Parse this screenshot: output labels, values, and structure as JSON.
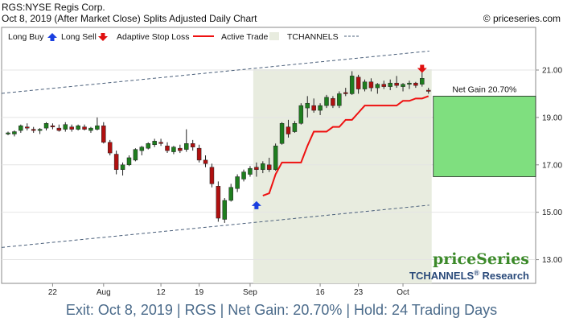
{
  "header": {
    "line1": "RGS:NYSE Regis Corp.",
    "line2": "Oct 8, 2019 (After Market Close)  Splits Adjusted Daily Chart",
    "copyright": "© priceseries.com"
  },
  "legend": {
    "long_buy": "Long Buy",
    "long_sell": "Long Sell",
    "adaptive_stop": "Adaptive Stop Loss",
    "active_trade": "Active Trade",
    "tchannels": "TCHANNELS"
  },
  "brand": {
    "logo": "priceSeries",
    "research_prefix": "TCHANNELS",
    "research_reg": "®",
    "research_suffix": " Research"
  },
  "gain_label": "Net Gain 20.70%",
  "footer": "Exit: Oct 8, 2019 | RGS | Net Gain: 20.70% | Hold: 24 Trading Days",
  "colors": {
    "up": "#1e7d1e",
    "down": "#b01010",
    "stop": "#ee1111",
    "active_bg": "#e8ecdf",
    "gain_box": "#7fdf7f",
    "channel": "#4a5f7a",
    "footer_text": "#4a6a8a",
    "research_text": "#2a4a7a",
    "logo_text": "#3c8a2a"
  },
  "chart_data": {
    "type": "candlestick",
    "title": "RGS:NYSE Regis Corp.",
    "ylim": [
      12.0,
      22.8
    ],
    "yticks": [
      13.0,
      15.0,
      17.0,
      19.0,
      21.0
    ],
    "ytick_labels": [
      "13.00",
      "15.00",
      "17.00",
      "19.00",
      "21.00"
    ],
    "xtick_labels": [
      {
        "label": "22",
        "i": 7
      },
      {
        "label": "Aug",
        "i": 15
      },
      {
        "label": "12",
        "i": 24
      },
      {
        "label": "19",
        "i": 30
      },
      {
        "label": "Sep",
        "i": 38
      },
      {
        "label": "16",
        "i": 49
      },
      {
        "label": "23",
        "i": 55
      },
      {
        "label": "Oct",
        "i": 62
      }
    ],
    "candles": [
      [
        18.3,
        18.4,
        18.25,
        18.35
      ],
      [
        18.3,
        18.45,
        18.2,
        18.4
      ],
      [
        18.45,
        18.7,
        18.35,
        18.65
      ],
      [
        18.6,
        18.75,
        18.45,
        18.55
      ],
      [
        18.5,
        18.6,
        18.35,
        18.45
      ],
      [
        18.45,
        18.55,
        18.3,
        18.5
      ],
      [
        18.55,
        18.8,
        18.45,
        18.75
      ],
      [
        18.65,
        18.75,
        18.5,
        18.6
      ],
      [
        18.55,
        18.7,
        18.4,
        18.45
      ],
      [
        18.5,
        18.8,
        18.4,
        18.7
      ],
      [
        18.6,
        18.7,
        18.4,
        18.5
      ],
      [
        18.5,
        18.7,
        18.45,
        18.65
      ],
      [
        18.6,
        18.7,
        18.45,
        18.5
      ],
      [
        18.45,
        18.6,
        18.35,
        18.55
      ],
      [
        18.5,
        19.0,
        18.45,
        18.65
      ],
      [
        18.65,
        18.8,
        17.9,
        17.95
      ],
      [
        17.95,
        18.05,
        17.4,
        17.5
      ],
      [
        17.45,
        17.6,
        16.6,
        16.8
      ],
      [
        16.8,
        17.1,
        16.55,
        17.0
      ],
      [
        17.0,
        17.4,
        16.95,
        17.3
      ],
      [
        17.2,
        17.7,
        17.15,
        17.65
      ],
      [
        17.6,
        17.8,
        17.4,
        17.75
      ],
      [
        17.7,
        17.95,
        17.65,
        17.9
      ],
      [
        17.85,
        18.1,
        17.75,
        18.0
      ],
      [
        17.95,
        18.1,
        17.8,
        17.9
      ],
      [
        17.8,
        17.95,
        17.5,
        17.6
      ],
      [
        17.55,
        17.8,
        17.45,
        17.75
      ],
      [
        17.7,
        17.85,
        17.5,
        17.6
      ],
      [
        17.65,
        18.5,
        17.55,
        17.9
      ],
      [
        17.9,
        18.05,
        17.6,
        17.75
      ],
      [
        17.7,
        17.85,
        17.1,
        17.2
      ],
      [
        17.2,
        17.4,
        16.9,
        17.05
      ],
      [
        16.9,
        17.05,
        16.05,
        16.2
      ],
      [
        16.1,
        16.3,
        14.6,
        14.75
      ],
      [
        14.7,
        15.6,
        14.55,
        15.5
      ],
      [
        15.5,
        16.2,
        15.45,
        16.05
      ],
      [
        16.0,
        16.6,
        15.85,
        16.5
      ],
      [
        16.4,
        16.8,
        16.3,
        16.7
      ],
      [
        16.6,
        16.95,
        16.5,
        16.85
      ],
      [
        16.9,
        17.1,
        16.5,
        16.8
      ],
      [
        16.8,
        17.15,
        16.65,
        17.05
      ],
      [
        17.0,
        17.3,
        16.7,
        16.8
      ],
      [
        16.8,
        17.9,
        16.75,
        17.8
      ],
      [
        17.9,
        18.8,
        17.85,
        18.75
      ],
      [
        18.6,
        18.9,
        18.15,
        18.3
      ],
      [
        18.4,
        18.85,
        18.35,
        18.75
      ],
      [
        18.75,
        19.6,
        18.7,
        19.5
      ],
      [
        19.4,
        19.9,
        19.0,
        19.6
      ],
      [
        19.5,
        19.8,
        19.2,
        19.3
      ],
      [
        19.3,
        19.6,
        19.1,
        19.5
      ],
      [
        19.5,
        19.95,
        19.4,
        19.85
      ],
      [
        19.8,
        19.9,
        19.4,
        19.5
      ],
      [
        19.5,
        20.1,
        19.4,
        20.0
      ],
      [
        20.05,
        20.25,
        19.9,
        20.0
      ],
      [
        20.0,
        20.95,
        19.95,
        20.75
      ],
      [
        20.7,
        20.8,
        20.0,
        20.2
      ],
      [
        20.2,
        20.6,
        20.1,
        20.5
      ],
      [
        20.5,
        20.65,
        20.1,
        20.25
      ],
      [
        20.25,
        20.45,
        20.0,
        20.4
      ],
      [
        20.4,
        20.55,
        20.2,
        20.3
      ],
      [
        20.3,
        20.6,
        20.15,
        20.45
      ],
      [
        20.45,
        20.75,
        20.25,
        20.35
      ],
      [
        20.3,
        20.45,
        20.1,
        20.4
      ],
      [
        20.4,
        20.55,
        20.2,
        20.45
      ],
      [
        20.45,
        20.5,
        20.25,
        20.35
      ],
      [
        20.4,
        20.9,
        20.3,
        20.65
      ],
      [
        20.15,
        20.25,
        20.0,
        20.1
      ]
    ],
    "stop_loss": {
      "start_index": 40,
      "values": [
        15.7,
        15.8,
        16.6,
        17.1,
        17.1,
        17.1,
        17.1,
        17.8,
        18.4,
        18.4,
        18.4,
        18.6,
        18.6,
        18.9,
        18.9,
        19.2,
        19.5,
        19.5,
        19.5,
        19.5,
        19.5,
        19.5,
        19.7,
        19.7,
        19.8,
        19.8,
        19.9
      ]
    },
    "active_trade": {
      "start_index": 39,
      "end_index": 66
    },
    "buy_signal": {
      "i": 39,
      "price": 15.3
    },
    "sell_signal": {
      "i": 65,
      "price": 21.05
    },
    "channel_upper": [
      [
        0,
        20.05
      ],
      [
        66,
        21.8
      ]
    ],
    "channel_lower": [
      [
        0,
        13.55
      ],
      [
        66,
        15.3
      ]
    ],
    "trade": {
      "entry": 16.5,
      "exit": 19.9,
      "net_gain_pct": 20.7
    }
  }
}
